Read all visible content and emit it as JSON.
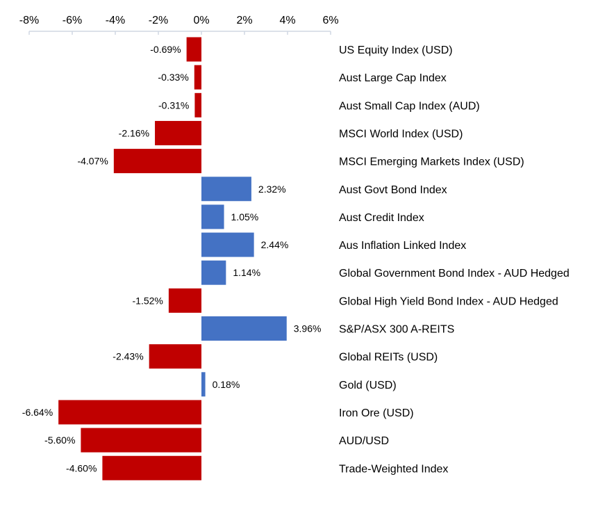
{
  "chart_data": {
    "type": "bar",
    "orientation": "horizontal",
    "title": "",
    "xlabel": "",
    "ylabel": "",
    "xlim": [
      -8,
      6
    ],
    "x_tick_values": [
      -8,
      -6,
      -4,
      -2,
      0,
      2,
      4,
      6
    ],
    "x_ticks": [
      "-8%",
      "-6%",
      "-4%",
      "-2%",
      "0%",
      "2%",
      "4%",
      "6%"
    ],
    "x_axis_position": "top",
    "grid": false,
    "legend": "none",
    "categories": [
      "US Equity Index (USD)",
      "Aust Large Cap Index",
      "Aust Small Cap Index (AUD)",
      "MSCI World Index (USD)",
      "MSCI Emerging Markets Index (USD)",
      "Aust Govt Bond Index",
      "Aust Credit Index",
      "Aus Inflation Linked Index",
      "Global Government Bond Index - AUD Hedged",
      "Global High Yield Bond Index - AUD Hedged",
      "S&P/ASX 300 A-REITS",
      "Global REITs (USD)",
      "Gold (USD)",
      "Iron Ore (USD)",
      "AUD/USD",
      "Trade-Weighted Index"
    ],
    "values": [
      -0.69,
      -0.33,
      -0.31,
      -2.16,
      -4.07,
      2.32,
      1.05,
      2.44,
      1.14,
      -1.52,
      3.96,
      -2.43,
      0.18,
      -6.64,
      -5.6,
      -4.6
    ],
    "data_labels": [
      "-0.69%",
      "-0.33%",
      "-0.31%",
      "-2.16%",
      "-4.07%",
      "2.32%",
      "1.05%",
      "2.44%",
      "1.14%",
      "-1.52%",
      "3.96%",
      "-2.43%",
      "0.18%",
      "-6.64%",
      "-5.60%",
      "-4.60%"
    ],
    "colors": {
      "negative": "#C00000",
      "positive": "#4472C4",
      "axis": "#D0D7E2",
      "text": "#000000"
    }
  }
}
